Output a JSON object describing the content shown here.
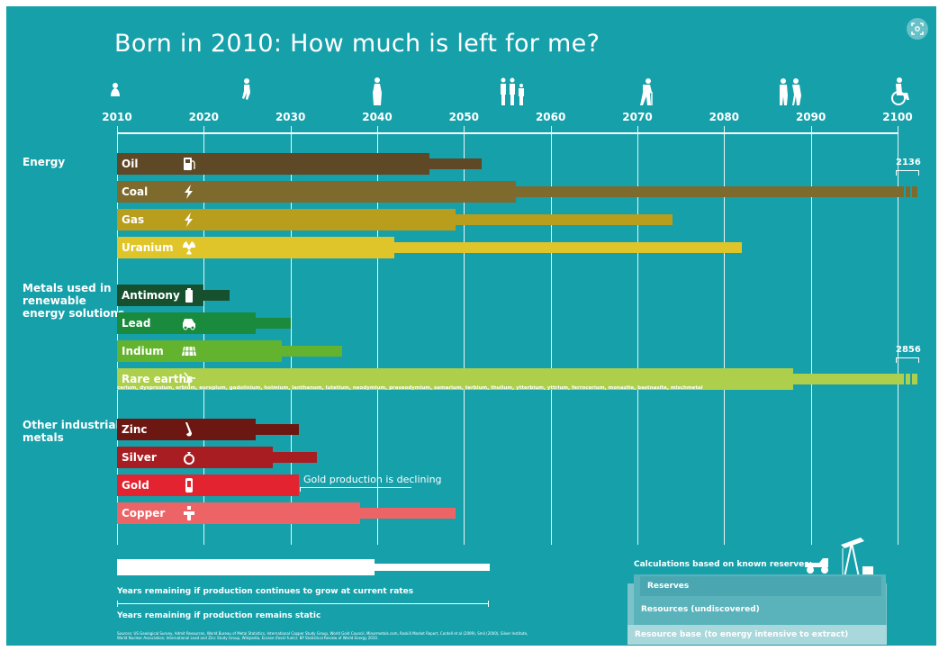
{
  "title": "Born in 2010: How much is left for me?",
  "colors": {
    "background": "#16a0aa",
    "oil": "#5f4826",
    "coal": "#7d6a2c",
    "gas": "#b99d1d",
    "uranium": "#e0c52a",
    "antimony": "#17502e",
    "lead": "#1a8a3c",
    "indium": "#64b32e",
    "rare_earths": "#aecf4c",
    "zinc": "#6d1712",
    "silver": "#a81d22",
    "gold": "#e3232f",
    "copper": "#ec6466"
  },
  "chart_data": {
    "type": "bar",
    "title": "Born in 2010: How much is left for me?",
    "xlim": [
      2010,
      2100
    ],
    "x_ticks": [
      "2010",
      "2020",
      "2030",
      "2040",
      "2050",
      "2060",
      "2070",
      "2080",
      "2090",
      "2100"
    ],
    "life_stages": [
      "baby-icon",
      "child-icon",
      "bride-icon",
      "family-icon",
      "elder-icon",
      "elderly-couple-icon",
      "wheelchair-icon"
    ],
    "groups": [
      {
        "label": "Energy",
        "items": [
          {
            "name": "Oil",
            "icon": "fuel-pump-icon",
            "color": "#5f4826",
            "growth_year": 2046,
            "static_year": 2052
          },
          {
            "name": "Coal",
            "icon": "lightning-icon",
            "color": "#7d6a2c",
            "growth_year": 2056,
            "static_year": 2136,
            "overflow_label": "2136"
          },
          {
            "name": "Gas",
            "icon": "lightning-icon",
            "color": "#b99d1d",
            "growth_year": 2049,
            "static_year": 2074
          },
          {
            "name": "Uranium",
            "icon": "radiation-icon",
            "color": "#e0c52a",
            "growth_year": 2042,
            "static_year": 2082
          }
        ]
      },
      {
        "label": "Metals used in\nrenewable\nenergy solutions",
        "items": [
          {
            "name": "Antimony",
            "icon": "battery-icon",
            "color": "#17502e",
            "growth_year": 2020,
            "static_year": 2023
          },
          {
            "name": "Lead",
            "icon": "car-icon",
            "color": "#1a8a3c",
            "growth_year": 2026,
            "static_year": 2030
          },
          {
            "name": "Indium",
            "icon": "solar-panel-icon",
            "color": "#64b32e",
            "growth_year": 2029,
            "static_year": 2036
          },
          {
            "name": "Rare earths",
            "icon": "wind-turbine-icon",
            "color": "#aecf4c",
            "growth_year": 2088,
            "static_year": 2856,
            "overflow_label": "2856",
            "note": "cerium, dysprosium, erbium, europium, gadolinium, holmium, lanthanum, lutetium, neodymium, praseodymium, samarium, terbium, thulium, ytterbium, yttrium, ferrocerium, monazite, bastnasite, mischmetal"
          }
        ]
      },
      {
        "label": "Other industrial\nmetals",
        "items": [
          {
            "name": "Zinc",
            "icon": "saxophone-icon",
            "color": "#6d1712",
            "growth_year": 2026,
            "static_year": 2031
          },
          {
            "name": "Silver",
            "icon": "ring-icon",
            "color": "#a81d22",
            "growth_year": 2028,
            "static_year": 2033
          },
          {
            "name": "Gold",
            "icon": "mobile-phone-icon",
            "color": "#e3232f",
            "growth_year": 2031,
            "static_year": 2031
          },
          {
            "name": "Copper",
            "icon": "faucet-icon",
            "color": "#ec6466",
            "growth_year": 2038,
            "static_year": 2049
          }
        ]
      }
    ],
    "annotations": [
      "Gold production is declining"
    ]
  },
  "legend": {
    "growth": "Years remaining if production continues to grow at current rates",
    "static": "Years remaining if production remains static"
  },
  "reserves_panel": {
    "title": "Calculations based on known reserves:",
    "reserves": "Reserves",
    "resources": "Resources (undiscovered)",
    "resource_base": "Resource base (to energy intensive to extract)"
  },
  "sources": "Sources: US Geological Survey, Admit Resources, World Bureau of Metal Statistics, International Copper Study Group, World Gold Council, Minormetals.com, Roskill Market Report, Cordell et al (2009), Smil (2000), Silver Institute, World Nuclear Association, International Lead and Zinc Study Group, Wikipedia, Ecosse (fossil fuels): BP Statistical Review of World Energy 2010."
}
